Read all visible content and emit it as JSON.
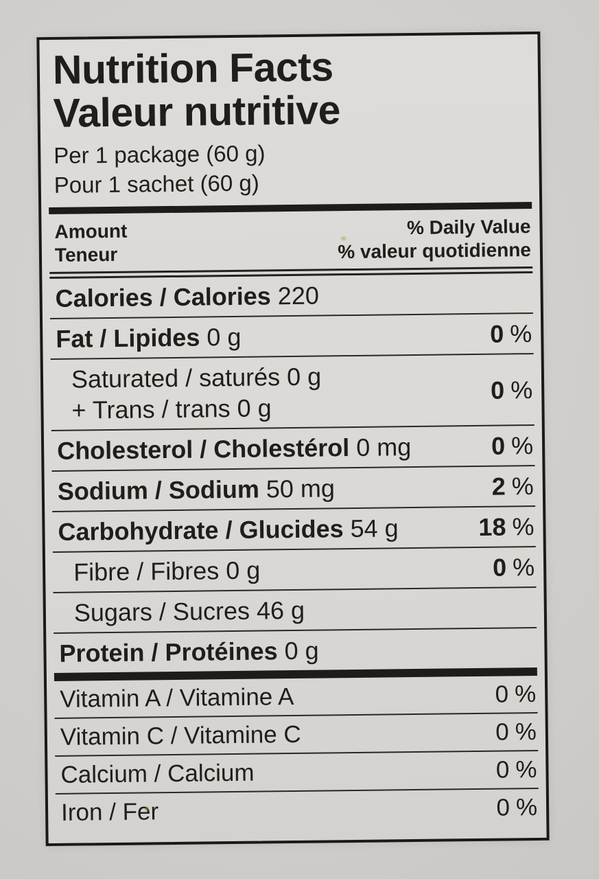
{
  "label": {
    "title_en": "Nutrition Facts",
    "title_fr": "Valeur nutritive",
    "serving_en": "Per 1 package (60 g)",
    "serving_fr": "Pour 1 sachet (60 g)",
    "header": {
      "amount_en": "Amount",
      "amount_fr": "Teneur",
      "daily_value_en": "% Daily Value",
      "daily_value_fr": "% valeur quotidienne"
    },
    "percent_symbol": "%",
    "rows": [
      {
        "name": "Calories / Calories",
        "amount": "220"
      },
      {
        "name": "Fat / Lipides",
        "amount": "0 g",
        "pct": "0"
      },
      {
        "name": "Saturated / saturés",
        "amount": "0 g",
        "line2": "+ Trans / trans 0 g",
        "pct": "0"
      },
      {
        "name": "Cholesterol / Cholestérol",
        "amount": "0 mg",
        "pct": "0"
      },
      {
        "name": "Sodium / Sodium",
        "amount": "50 mg",
        "pct": "2"
      },
      {
        "name": "Carbohydrate / Glucides",
        "amount": "54 g",
        "pct": "18"
      },
      {
        "name": "Fibre / Fibres",
        "amount": "0 g",
        "pct": "0"
      },
      {
        "name": "Sugars / Sucres",
        "amount": "46 g"
      },
      {
        "name": "Protein / Protéines",
        "amount": "0 g"
      },
      {
        "name": "Vitamin A / Vitamine A",
        "pct": "0"
      },
      {
        "name": "Vitamin C / Vitamine C",
        "pct": "0"
      },
      {
        "name": "Calcium / Calcium",
        "pct": "0"
      },
      {
        "name": "Iron / Fer",
        "pct": "0"
      }
    ],
    "colors": {
      "ink": "#201e1b",
      "paper": "#dbd9d5",
      "page_background": "#cdcbc7"
    }
  }
}
